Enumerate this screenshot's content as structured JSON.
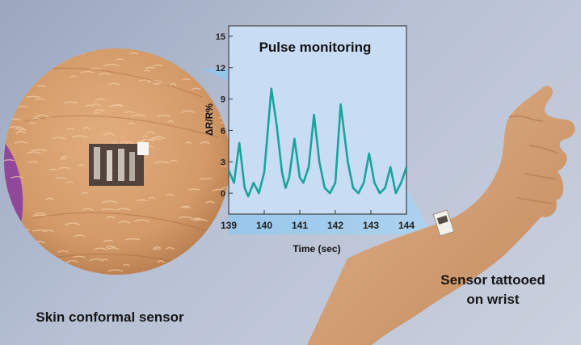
{
  "captions": {
    "left": "Skin conformal sensor",
    "right_line1": "Sensor tattooed",
    "right_line2": "on wrist"
  },
  "colors": {
    "background": "#b3bdd0",
    "skin": "#d7a070",
    "chart_bg": "#c8dcf3",
    "line": "#1aa39b",
    "sensor": "#3a3232"
  },
  "chart_data": {
    "type": "line",
    "title": "Pulse monitoring",
    "xlabel": "Time (sec)",
    "ylabel": "ΔR/R%",
    "xlim": [
      139,
      144
    ],
    "ylim": [
      -2,
      16
    ],
    "xticks": [
      "139",
      "140",
      "141",
      "142",
      "143",
      "144"
    ],
    "yticks": [
      "0",
      "3",
      "6",
      "9",
      "12",
      "15"
    ],
    "series": [
      {
        "x": [
          139.0,
          139.15,
          139.3,
          139.45,
          139.55,
          139.7,
          139.85,
          140.0,
          140.2,
          140.35,
          140.5,
          140.6,
          140.7,
          140.85,
          141.0,
          141.1,
          141.25,
          141.4,
          141.55,
          141.7,
          141.85,
          142.0,
          142.15,
          142.35,
          142.5,
          142.65,
          142.8,
          142.95,
          143.1,
          143.25,
          143.4,
          143.55,
          143.7,
          143.85,
          144.0
        ],
        "y": [
          2.2,
          1.0,
          4.8,
          0.5,
          -0.3,
          1.0,
          0.0,
          2.0,
          10.0,
          6.5,
          2.0,
          0.5,
          1.5,
          5.2,
          1.5,
          1.0,
          2.5,
          7.5,
          3.0,
          0.5,
          0.0,
          1.0,
          8.5,
          3.0,
          0.5,
          0.0,
          1.0,
          3.8,
          1.0,
          0.0,
          0.5,
          2.5,
          0.0,
          1.0,
          2.5
        ]
      }
    ]
  }
}
